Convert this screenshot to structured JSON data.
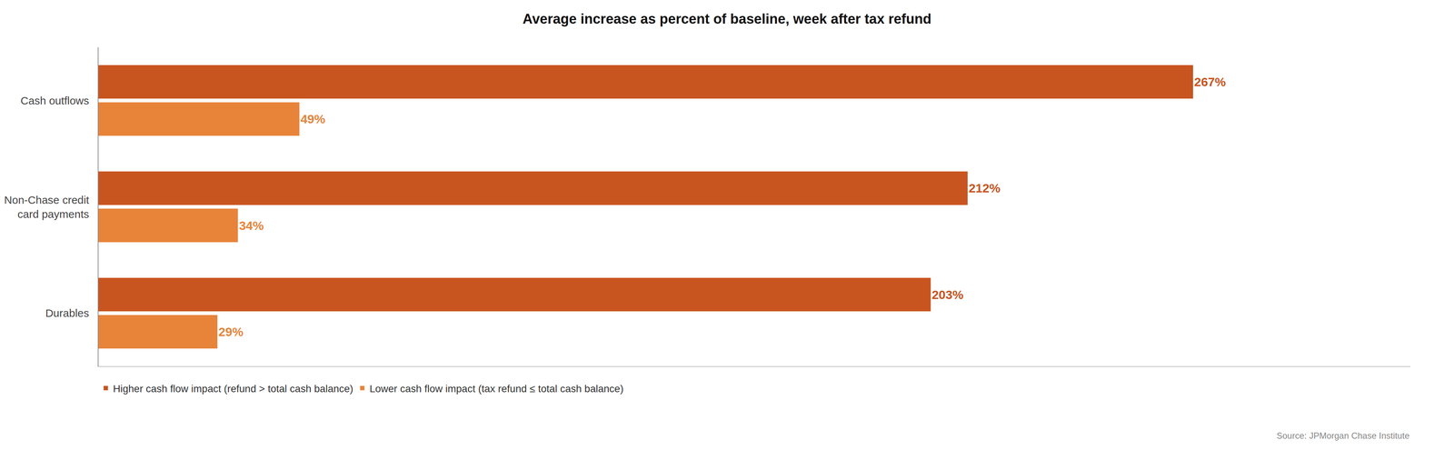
{
  "chart_data": {
    "type": "bar",
    "orientation": "horizontal",
    "title": "Average increase as percent of baseline, week after tax refund",
    "categories": [
      "Cash outflows",
      "Non-Chase credit\ncard payments",
      "Durables"
    ],
    "series": [
      {
        "name": "Higher cash flow impact (refund > total cash balance)",
        "color": "#C85420",
        "values": [
          267,
          212,
          203
        ],
        "value_labels": [
          "267%",
          "212%",
          "203%"
        ]
      },
      {
        "name": "Lower cash flow impact (tax refund ≤ total cash balance)",
        "color": "#E8833A",
        "values": [
          49,
          34,
          29
        ],
        "value_labels": [
          "49%",
          "34%",
          "29%"
        ]
      }
    ],
    "xlim": [
      0,
      320
    ],
    "tick_labels": "y",
    "grid": false,
    "data_labels": true,
    "legend": "lower left",
    "annotations": [
      "Source: JPMorgan Chase Institute"
    ]
  }
}
